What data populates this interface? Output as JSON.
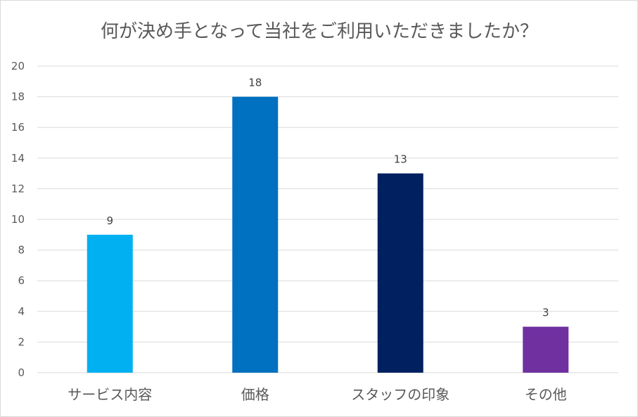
{
  "chart_data": {
    "type": "bar",
    "title": "何が決め手となって当社をご利用いただきましたか？",
    "categories": [
      "サービス内容",
      "価格",
      "スタッフの印象",
      "その他"
    ],
    "values": [
      9,
      18,
      13,
      3
    ],
    "colors": [
      "#00b0f0",
      "#0070c0",
      "#002060",
      "#7030a0"
    ],
    "ylim": [
      0,
      20
    ],
    "yticks": [
      0,
      2,
      4,
      6,
      8,
      10,
      12,
      14,
      16,
      18,
      20
    ],
    "grid": true,
    "legend": "none",
    "data_labels": true
  }
}
